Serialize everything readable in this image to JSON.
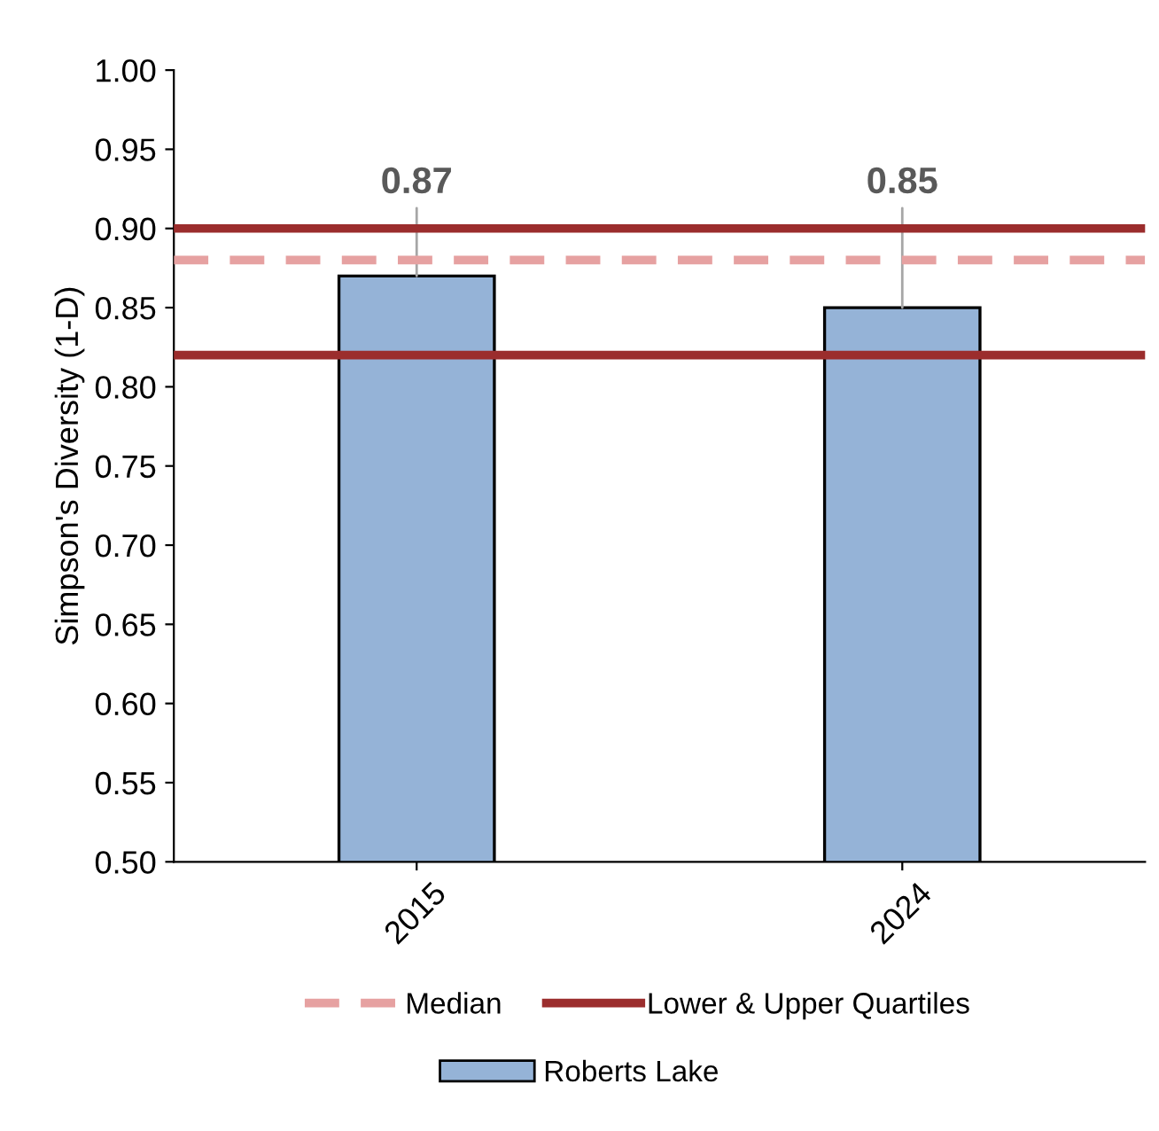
{
  "chart_data": {
    "type": "bar",
    "ylabel": "Simpson's Diversity (1-D)",
    "categories": [
      "2015",
      "2024"
    ],
    "series": [
      {
        "name": "Roberts Lake",
        "color": "#95b3d7",
        "values": [
          0.87,
          0.85
        ]
      }
    ],
    "ylim": [
      0.5,
      1.0
    ],
    "yticks": [
      "0.50",
      "0.55",
      "0.60",
      "0.65",
      "0.70",
      "0.75",
      "0.80",
      "0.85",
      "0.90",
      "0.95",
      "1.00"
    ],
    "ref_lines": [
      {
        "axis": "y",
        "value": 0.88,
        "label": "Median",
        "color": "#e6a1a1",
        "line_style": "dashed"
      },
      {
        "axis": "y",
        "value": 0.82,
        "label": "Lower & Upper Quartiles",
        "color": "#9b2d2d",
        "line_style": "solid"
      },
      {
        "axis": "y",
        "value": 0.9,
        "color": "#9b2d2d",
        "line_style": "solid"
      }
    ],
    "data_labels": true,
    "grid": false,
    "legend": "bottom"
  }
}
